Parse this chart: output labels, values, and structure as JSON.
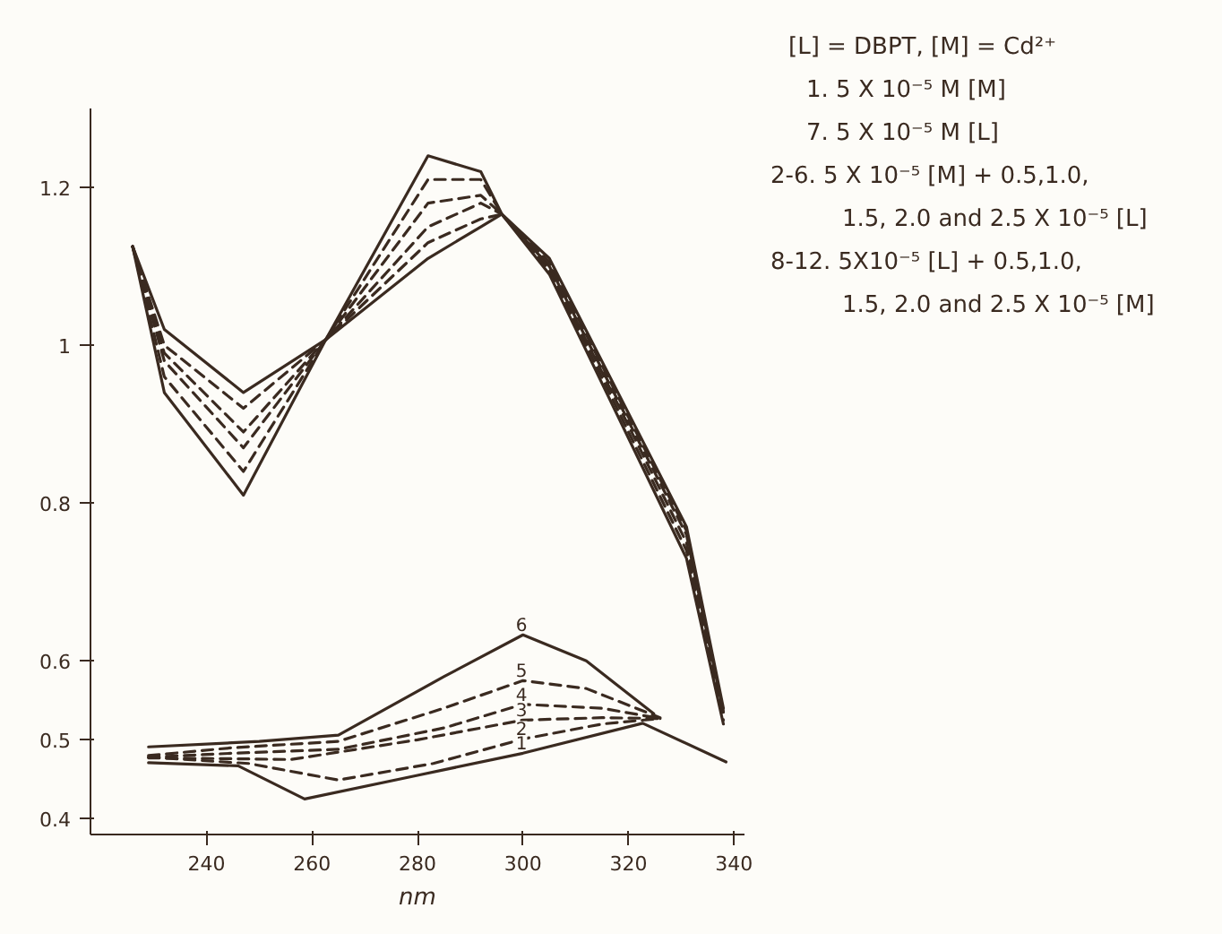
{
  "chart_data": {
    "type": "line",
    "xlabel": "nm",
    "xlim": [
      218,
      342
    ],
    "ylim": [
      0.38,
      1.3
    ],
    "xticks": [
      240,
      260,
      280,
      300,
      320,
      340
    ],
    "yticks": [
      0.4,
      0.5,
      0.6,
      0.8,
      1.0,
      1.2
    ],
    "grid": false,
    "marker": "none",
    "series": [
      {
        "name": "1",
        "color": "#3a2a20",
        "line_style": "solid",
        "x": [
          229,
          246,
          258.6,
          280,
          300,
          322.7,
          338.5
        ],
        "values": [
          0.471,
          0.467,
          0.425,
          0.455,
          0.483,
          0.521,
          0.472
        ]
      },
      {
        "name": "2",
        "color": "#3a2a20",
        "line_style": "dashed",
        "x": [
          229,
          248,
          265,
          283,
          300,
          315,
          326
        ],
        "values": [
          0.478,
          0.47,
          0.449,
          0.47,
          0.501,
          0.52,
          0.527
        ]
      },
      {
        "name": "3",
        "color": "#3a2a20",
        "line_style": "dashed",
        "x": [
          229,
          245,
          256,
          280,
          300,
          315,
          326
        ],
        "values": [
          0.477,
          0.476,
          0.475,
          0.5,
          0.525,
          0.528,
          0.527
        ]
      },
      {
        "name": "4",
        "color": "#3a2a20",
        "line_style": "dashed",
        "x": [
          229,
          245,
          265,
          285,
          300,
          315,
          326
        ],
        "values": [
          0.478,
          0.483,
          0.488,
          0.515,
          0.545,
          0.54,
          0.527
        ]
      },
      {
        "name": "5",
        "color": "#3a2a20",
        "line_style": "dashed",
        "x": [
          229,
          245,
          265,
          285,
          300,
          312,
          326
        ],
        "values": [
          0.48,
          0.49,
          0.498,
          0.54,
          0.575,
          0.565,
          0.528
        ]
      },
      {
        "name": "6",
        "color": "#3a2a20",
        "line_style": "solid",
        "x": [
          229,
          250,
          265,
          285,
          300,
          312,
          324.8
        ],
        "values": [
          0.491,
          0.498,
          0.506,
          0.58,
          0.633,
          0.6,
          0.533
        ]
      },
      {
        "color": "#3a2a20",
        "line_style": "solid",
        "x": [
          226,
          232,
          247,
          262.6,
          282,
          292,
          296,
          305,
          331,
          338
        ],
        "values": [
          1.125,
          0.94,
          0.81,
          1.007,
          1.24,
          1.22,
          1.166,
          1.09,
          0.73,
          0.52
        ]
      },
      {
        "color": "#3a2a20",
        "line_style": "dashed",
        "x": [
          226,
          232,
          247,
          262.6,
          282,
          292,
          296,
          305,
          331,
          338
        ],
        "values": [
          1.125,
          0.96,
          0.84,
          1.007,
          1.21,
          1.21,
          1.166,
          1.095,
          0.74,
          0.525
        ]
      },
      {
        "color": "#3a2a20",
        "line_style": "dashed",
        "x": [
          226,
          232,
          247,
          262.6,
          282,
          292,
          296,
          305,
          331,
          338
        ],
        "values": [
          1.125,
          0.98,
          0.87,
          1.007,
          1.18,
          1.19,
          1.166,
          1.1,
          0.75,
          0.53
        ]
      },
      {
        "color": "#3a2a20",
        "line_style": "dashed",
        "x": [
          226,
          232,
          247,
          262.6,
          282,
          292,
          296,
          305,
          331,
          338
        ],
        "values": [
          1.125,
          0.99,
          0.89,
          1.007,
          1.15,
          1.18,
          1.166,
          1.1,
          0.76,
          0.535
        ]
      },
      {
        "color": "#3a2a20",
        "line_style": "dashed",
        "x": [
          226,
          232,
          247,
          262.6,
          282,
          292,
          296,
          305,
          331,
          338
        ],
        "values": [
          1.125,
          1.0,
          0.92,
          1.007,
          1.13,
          1.16,
          1.166,
          1.105,
          0.765,
          0.535
        ]
      },
      {
        "color": "#3a2a20",
        "line_style": "solid",
        "x": [
          226,
          232,
          247,
          262.6,
          282,
          292,
          296,
          305,
          331,
          338
        ],
        "values": [
          1.125,
          1.02,
          0.94,
          1.007,
          1.11,
          1.15,
          1.166,
          1.11,
          0.77,
          0.54
        ]
      }
    ],
    "annotations": [
      "[L] = DBPT,  [M] = Cd²⁺",
      "1. 5 X 10⁻⁵ M [M]",
      "7. 5 X 10⁻⁵ M [L]",
      "2‑6. 5 X 10⁻⁵ [M] + 0.5,1.0,",
      "1.5, 2.0 and 2.5 X 10⁻⁵ [L]",
      "8‑12. 5X10⁻⁵ [L] + 0.5,1.0,",
      "1.5, 2.0 and 2.5 X 10⁻⁵ [M]"
    ]
  }
}
